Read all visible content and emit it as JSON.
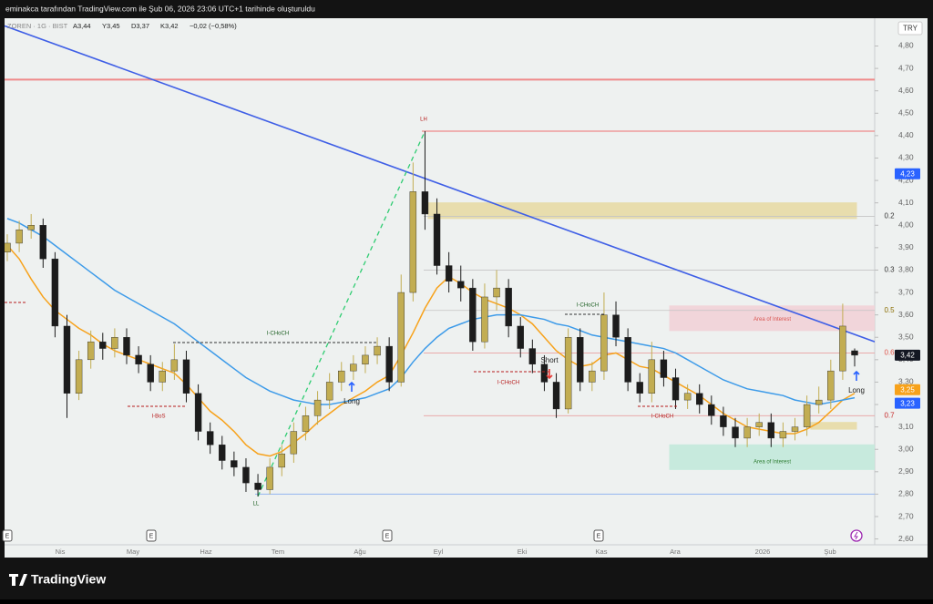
{
  "header": {
    "attribution": "eminakca tarafından TradingView.com ile Şub 06, 2026 23:06 UTC+1 tarihinde oluşturuldu",
    "symbol": "ZOREN · 1G · BIST",
    "quote": [
      "A3,44",
      "Y3,45",
      "D3,37",
      "K3,42",
      "−0,02 (−0,58%)"
    ],
    "brand": "TradingView"
  },
  "chart_data": {
    "type": "candlestick",
    "currency": "TRY",
    "ylim": [
      2.574,
      4.924
    ],
    "yticks": [
      {
        "value": 2.6,
        "label": "2,60"
      },
      {
        "value": 2.7,
        "label": "2,70"
      },
      {
        "value": 2.8,
        "label": "2,80"
      },
      {
        "value": 2.9,
        "label": "2,90"
      },
      {
        "value": 3.0,
        "label": "3,00"
      },
      {
        "value": 3.1,
        "label": "3,10"
      },
      {
        "value": 3.2,
        "label": "3,20"
      },
      {
        "value": 3.3,
        "label": "3,30"
      },
      {
        "value": 3.4,
        "label": "3,40"
      },
      {
        "value": 3.5,
        "label": "3,50"
      },
      {
        "value": 3.6,
        "label": "3,60"
      },
      {
        "value": 3.7,
        "label": "3,70"
      },
      {
        "value": 3.8,
        "label": "3,80"
      },
      {
        "value": 3.9,
        "label": "3,90"
      },
      {
        "value": 4.0,
        "label": "4,00"
      },
      {
        "value": 4.1,
        "label": "4,10"
      },
      {
        "value": 4.2,
        "label": "4,20"
      },
      {
        "value": 4.3,
        "label": "4,30"
      },
      {
        "value": 4.4,
        "label": "4,40"
      },
      {
        "value": 4.5,
        "label": "4,50"
      },
      {
        "value": 4.6,
        "label": "4,60"
      },
      {
        "value": 4.7,
        "label": "4,70"
      },
      {
        "value": 4.8,
        "label": "4,80"
      }
    ],
    "months": [
      "Nis",
      "May",
      "Haz",
      "Tem",
      "Ağu",
      "Eyl",
      "Eki",
      "Kas",
      "Ara",
      "2026",
      "Şub"
    ],
    "candles": {
      "up_color": "#c2ad52",
      "down_color": "#1c1c1c",
      "open": [
        3.88,
        3.92,
        3.98,
        4.0,
        3.85,
        3.55,
        3.25,
        3.4,
        3.48,
        3.45,
        3.5,
        3.42,
        3.38,
        3.3,
        3.35,
        3.4,
        3.25,
        3.08,
        3.02,
        2.95,
        2.92,
        2.85,
        2.82,
        2.92,
        2.98,
        3.08,
        3.15,
        3.22,
        3.3,
        3.35,
        3.38,
        3.42,
        3.46,
        3.3,
        3.7,
        4.15,
        4.05,
        3.82,
        3.75,
        3.72,
        3.48,
        3.68,
        3.72,
        3.55,
        3.45,
        3.38,
        3.3,
        3.18,
        3.5,
        3.3,
        3.35,
        3.6,
        3.5,
        3.3,
        3.25,
        3.4,
        3.32,
        3.22,
        3.25,
        3.2,
        3.15,
        3.1,
        3.05,
        3.1,
        3.12,
        3.05,
        3.08,
        3.1,
        3.2,
        3.22,
        3.35,
        3.44
      ],
      "high": [
        3.96,
        4.02,
        4.05,
        4.03,
        3.88,
        3.6,
        3.44,
        3.53,
        3.52,
        3.54,
        3.54,
        3.46,
        3.42,
        3.39,
        3.47,
        3.44,
        3.29,
        3.12,
        3.06,
        2.99,
        2.96,
        2.89,
        2.96,
        3.02,
        3.12,
        3.19,
        3.26,
        3.34,
        3.39,
        3.42,
        3.46,
        3.5,
        3.5,
        3.78,
        4.28,
        4.42,
        4.12,
        3.88,
        3.82,
        3.76,
        3.74,
        3.8,
        3.76,
        3.59,
        3.49,
        3.42,
        3.34,
        3.54,
        3.54,
        3.39,
        3.7,
        3.66,
        3.54,
        3.34,
        3.48,
        3.44,
        3.36,
        3.29,
        3.29,
        3.24,
        3.19,
        3.14,
        3.14,
        3.16,
        3.16,
        3.12,
        3.14,
        3.24,
        3.28,
        3.4,
        3.65,
        3.45
      ],
      "low": [
        3.84,
        3.88,
        3.94,
        3.81,
        3.5,
        3.14,
        3.22,
        3.36,
        3.4,
        3.41,
        3.38,
        3.34,
        3.26,
        3.26,
        3.31,
        3.21,
        3.04,
        2.98,
        2.91,
        2.88,
        2.81,
        2.79,
        2.8,
        2.88,
        2.94,
        3.04,
        3.11,
        3.18,
        3.26,
        3.31,
        3.34,
        3.38,
        3.26,
        3.28,
        3.66,
        3.98,
        3.78,
        3.7,
        3.66,
        3.44,
        3.45,
        3.62,
        3.5,
        3.41,
        3.34,
        3.26,
        3.14,
        3.16,
        3.26,
        3.26,
        3.31,
        3.46,
        3.26,
        3.21,
        3.21,
        3.28,
        3.18,
        3.18,
        3.16,
        3.11,
        3.06,
        3.01,
        3.01,
        3.06,
        3.01,
        3.01,
        3.04,
        3.06,
        3.16,
        3.18,
        3.31,
        3.37
      ],
      "close": [
        3.92,
        3.98,
        4.0,
        3.85,
        3.55,
        3.25,
        3.4,
        3.48,
        3.45,
        3.5,
        3.42,
        3.38,
        3.3,
        3.35,
        3.4,
        3.25,
        3.08,
        3.02,
        2.95,
        2.92,
        2.85,
        2.82,
        2.92,
        2.98,
        3.08,
        3.15,
        3.22,
        3.3,
        3.35,
        3.38,
        3.42,
        3.46,
        3.3,
        3.7,
        4.15,
        4.05,
        3.82,
        3.75,
        3.72,
        3.48,
        3.68,
        3.72,
        3.55,
        3.45,
        3.38,
        3.3,
        3.18,
        3.5,
        3.3,
        3.35,
        3.6,
        3.5,
        3.3,
        3.25,
        3.4,
        3.32,
        3.22,
        3.25,
        3.2,
        3.15,
        3.1,
        3.05,
        3.1,
        3.12,
        3.05,
        3.08,
        3.1,
        3.2,
        3.22,
        3.35,
        3.55,
        3.42
      ]
    },
    "series": [
      {
        "color": "#f7a21b",
        "values": [
          3.91,
          3.85,
          3.76,
          3.68,
          3.62,
          3.58,
          3.54,
          3.51,
          3.47,
          3.44,
          3.42,
          3.4,
          3.38,
          3.36,
          3.34,
          3.29,
          3.23,
          3.17,
          3.13,
          3.08,
          3.02,
          2.98,
          2.97,
          2.99,
          3.03,
          3.07,
          3.12,
          3.16,
          3.2,
          3.23,
          3.26,
          3.3,
          3.33,
          3.42,
          3.52,
          3.63,
          3.72,
          3.77,
          3.74,
          3.7,
          3.67,
          3.65,
          3.63,
          3.6,
          3.56,
          3.5,
          3.44,
          3.4,
          3.37,
          3.38,
          3.42,
          3.43,
          3.4,
          3.37,
          3.36,
          3.33,
          3.3,
          3.27,
          3.24,
          3.2,
          3.16,
          3.13,
          3.1,
          3.09,
          3.08,
          3.07,
          3.07,
          3.09,
          3.12,
          3.17,
          3.22,
          3.25
        ]
      },
      {
        "color": "#3d9be9",
        "values": [
          4.03,
          4.01,
          3.98,
          3.95,
          3.91,
          3.87,
          3.83,
          3.79,
          3.75,
          3.71,
          3.68,
          3.65,
          3.62,
          3.59,
          3.56,
          3.52,
          3.48,
          3.44,
          3.4,
          3.36,
          3.32,
          3.29,
          3.26,
          3.24,
          3.22,
          3.21,
          3.2,
          3.2,
          3.21,
          3.22,
          3.23,
          3.25,
          3.27,
          3.32,
          3.39,
          3.45,
          3.5,
          3.54,
          3.56,
          3.58,
          3.59,
          3.6,
          3.6,
          3.6,
          3.59,
          3.58,
          3.56,
          3.55,
          3.53,
          3.51,
          3.5,
          3.49,
          3.48,
          3.47,
          3.46,
          3.45,
          3.43,
          3.4,
          3.37,
          3.34,
          3.31,
          3.29,
          3.27,
          3.26,
          3.25,
          3.24,
          3.22,
          3.21,
          3.2,
          3.21,
          3.22,
          3.23
        ]
      }
    ],
    "trendline": {
      "color": "#3f5fe6",
      "values": [
        4.89,
        3.48
      ]
    },
    "hlines": [
      {
        "value": 4.65,
        "color": "#ef8a8a"
      },
      {
        "value": 4.42,
        "color": "#ef8a8a"
      },
      {
        "value": 2.8,
        "color": "#9dbcf0"
      }
    ],
    "levels": [
      {
        "label": "0.2",
        "value": 4.04,
        "color": "#333333"
      },
      {
        "label": "0.3",
        "value": 3.8,
        "color": "#333333"
      },
      {
        "label": "0.5",
        "value": 3.62,
        "color": "#8a6d00"
      },
      {
        "label": "0.6",
        "value": 3.43,
        "color": "#e0554b"
      },
      {
        "label": "0.7",
        "value": 3.15,
        "color": "#c62828"
      }
    ],
    "zones": [
      {
        "range": [
          4.03,
          4.1
        ],
        "color": "#e8dba6"
      },
      {
        "range": [
          3.53,
          3.64
        ],
        "color": "#f2d3d8",
        "label": "Area of Interest",
        "text_color": "#d9534f"
      },
      {
        "range": [
          2.91,
          3.02
        ],
        "color": "#c3eadb",
        "label": "Area of Interest",
        "text_color": "#2e7d32"
      },
      {
        "range": [
          3.09,
          3.12
        ],
        "color": "#e8dba6"
      }
    ],
    "price_tags": [
      {
        "value": 4.23,
        "label": "4,23",
        "color": "#2962ff"
      },
      {
        "value": 3.42,
        "label": "3,42",
        "color": "#131722"
      },
      {
        "value": 3.25,
        "label": "3,25",
        "color": "#f7a21b"
      },
      {
        "value": 3.23,
        "label": "3,23",
        "color": "#2962ff"
      }
    ],
    "annotations": [
      {
        "text": "LH",
        "color": "#b71c1c"
      },
      {
        "text": "LL",
        "color": "#1b5e20"
      },
      {
        "text": "I-CHoCH",
        "color": "#1b5e20"
      },
      {
        "text": "I-BoS",
        "color": "#b71c1c"
      },
      {
        "text": "I-CHoCH",
        "color": "#b71c1c"
      },
      {
        "text": "I-CHoCH",
        "color": "#1b5e20"
      },
      {
        "text": "I-CHoCH",
        "color": "#b71c1c"
      },
      {
        "text": "Long",
        "color": "#222222"
      },
      {
        "text": "Long",
        "color": "#222222"
      },
      {
        "text": "Short",
        "color": "#222222"
      }
    ],
    "events": [
      "E",
      "E",
      "E",
      "E"
    ]
  }
}
